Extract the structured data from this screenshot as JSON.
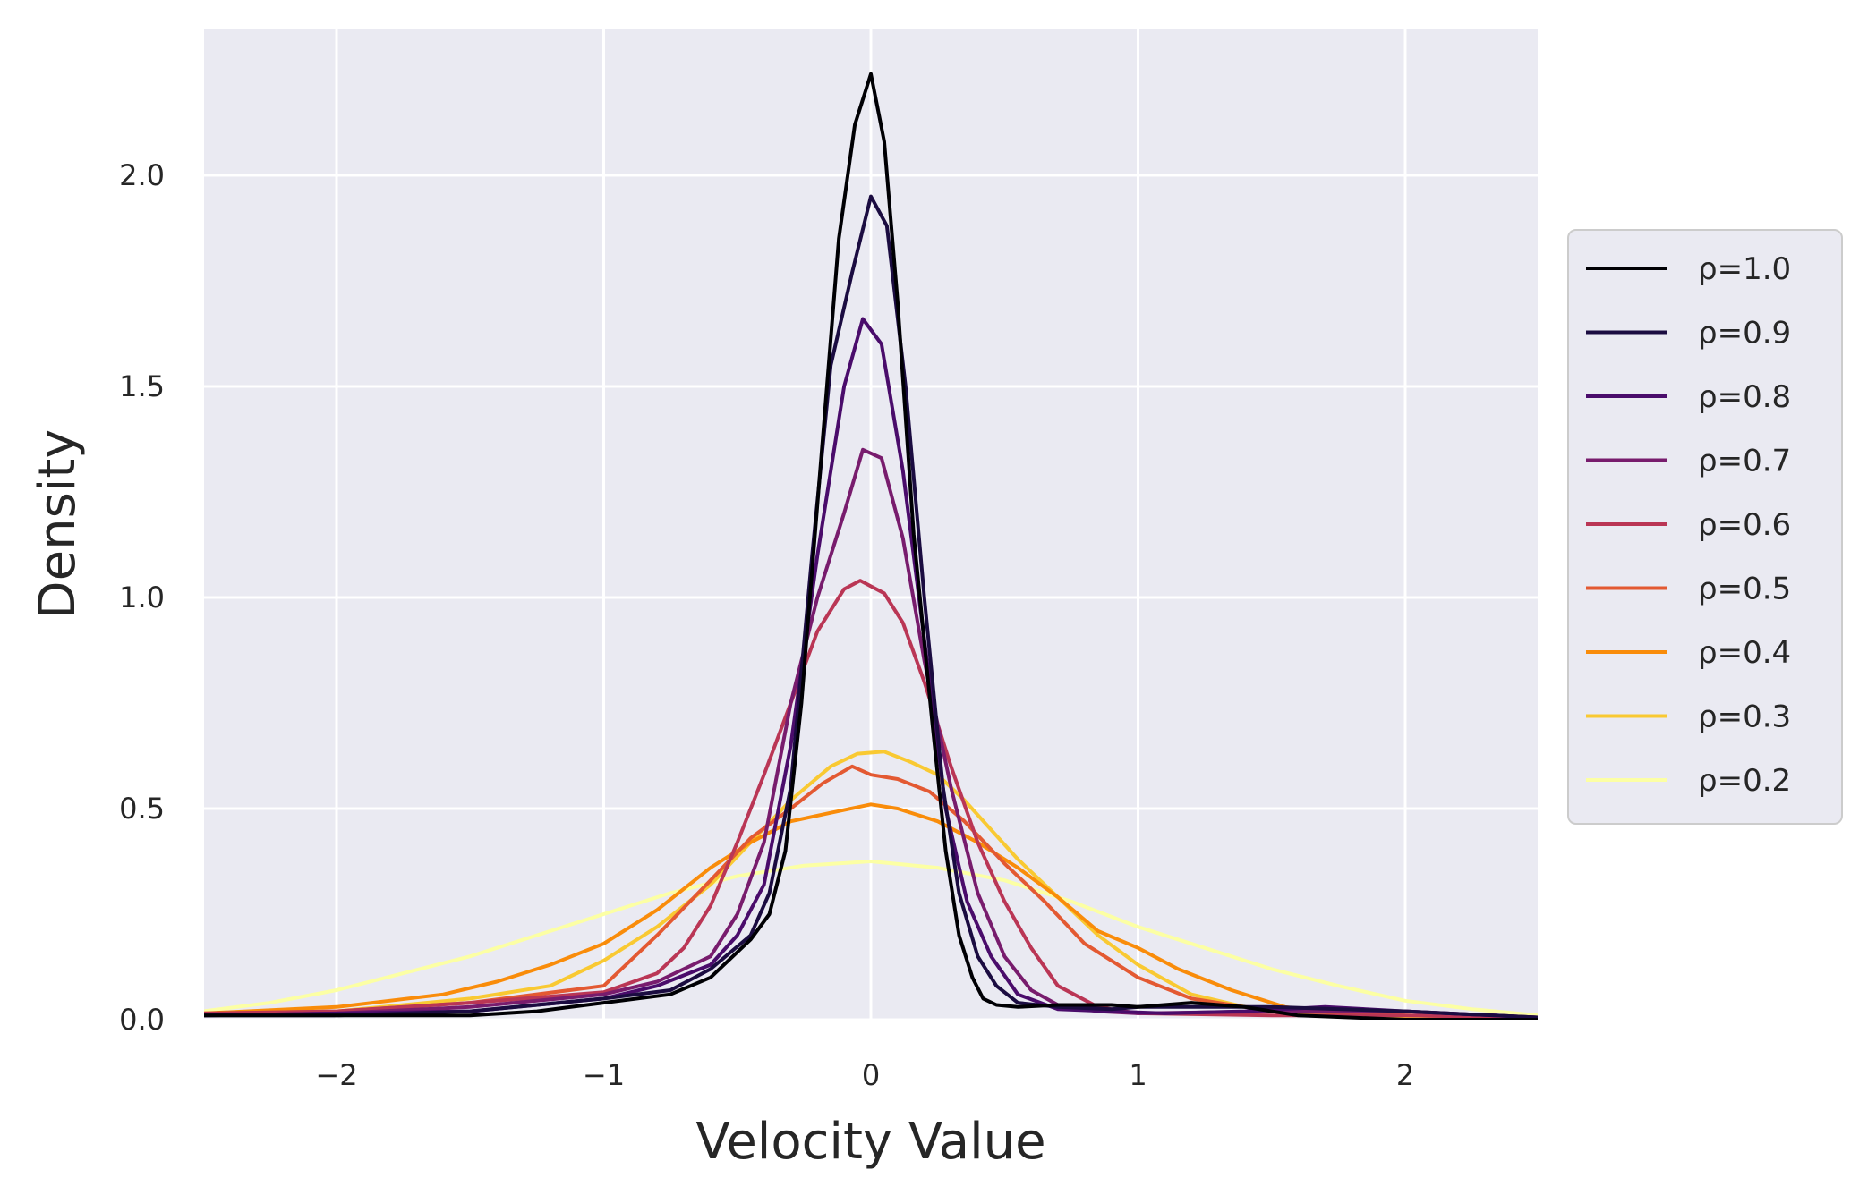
{
  "chart_data": {
    "type": "line",
    "title": "",
    "xlabel": "Velocity Value",
    "ylabel": "Density",
    "xlim": [
      -2.5,
      2.5
    ],
    "ylim": [
      0,
      2.35
    ],
    "xticks": [
      -2,
      -1,
      0,
      1,
      2
    ],
    "xtick_labels": [
      "−2",
      "−1",
      "0",
      "1",
      "2"
    ],
    "yticks": [
      0.0,
      0.5,
      1.0,
      1.5,
      2.0
    ],
    "ytick_labels": [
      "0.0",
      "0.5",
      "1.0",
      "1.5",
      "2.0"
    ],
    "grid": true,
    "legend_position": "right, outside plot",
    "series": [
      {
        "name": "ρ=1.0",
        "color": "#000004",
        "x": [
          -2.5,
          -2.0,
          -1.5,
          -1.25,
          -1.0,
          -0.75,
          -0.6,
          -0.45,
          -0.38,
          -0.32,
          -0.26,
          -0.19,
          -0.12,
          -0.06,
          0.0,
          0.05,
          0.1,
          0.16,
          0.23,
          0.28,
          0.33,
          0.38,
          0.42,
          0.47,
          0.55,
          0.7,
          0.9,
          1.0,
          1.2,
          1.4,
          1.6,
          1.8,
          2.0,
          2.2,
          2.5
        ],
        "y": [
          0.01,
          0.01,
          0.01,
          0.02,
          0.04,
          0.06,
          0.1,
          0.19,
          0.25,
          0.4,
          0.75,
          1.3,
          1.85,
          2.12,
          2.24,
          2.08,
          1.7,
          1.15,
          0.7,
          0.4,
          0.2,
          0.1,
          0.05,
          0.035,
          0.03,
          0.035,
          0.035,
          0.03,
          0.04,
          0.03,
          0.01,
          0.005,
          0.0,
          0.0,
          0.0
        ]
      },
      {
        "name": "ρ=0.9",
        "color": "#1b0c41",
        "x": [
          -2.5,
          -2.0,
          -1.5,
          -1.0,
          -0.75,
          -0.6,
          -0.45,
          -0.38,
          -0.3,
          -0.22,
          -0.15,
          -0.07,
          0.0,
          0.06,
          0.13,
          0.2,
          0.27,
          0.33,
          0.4,
          0.47,
          0.55,
          0.7,
          0.9,
          1.0,
          1.2,
          1.5,
          2.0,
          2.5
        ],
        "y": [
          0.01,
          0.01,
          0.02,
          0.05,
          0.07,
          0.12,
          0.2,
          0.3,
          0.55,
          1.1,
          1.55,
          1.77,
          1.95,
          1.88,
          1.5,
          1.0,
          0.55,
          0.3,
          0.15,
          0.08,
          0.04,
          0.03,
          0.025,
          0.03,
          0.03,
          0.03,
          0.02,
          0.005
        ]
      },
      {
        "name": "ρ=0.8",
        "color": "#4a0c6b",
        "x": [
          -2.5,
          -2.0,
          -1.5,
          -1.0,
          -0.8,
          -0.6,
          -0.5,
          -0.4,
          -0.3,
          -0.2,
          -0.1,
          -0.03,
          0.04,
          0.12,
          0.2,
          0.28,
          0.36,
          0.45,
          0.55,
          0.7,
          0.9,
          1.1,
          1.4,
          1.7,
          2.0,
          2.5
        ],
        "y": [
          0.01,
          0.015,
          0.02,
          0.05,
          0.08,
          0.13,
          0.2,
          0.32,
          0.65,
          1.1,
          1.5,
          1.66,
          1.6,
          1.3,
          0.9,
          0.5,
          0.28,
          0.15,
          0.06,
          0.025,
          0.02,
          0.015,
          0.02,
          0.03,
          0.02,
          0.005
        ]
      },
      {
        "name": "ρ=0.7",
        "color": "#781c6d",
        "x": [
          -2.5,
          -2.0,
          -1.5,
          -1.0,
          -0.8,
          -0.6,
          -0.5,
          -0.4,
          -0.3,
          -0.2,
          -0.1,
          -0.03,
          0.04,
          0.12,
          0.2,
          0.3,
          0.4,
          0.5,
          0.6,
          0.7,
          0.85,
          1.0,
          1.5,
          2.0,
          2.5
        ],
        "y": [
          0.01,
          0.015,
          0.03,
          0.06,
          0.09,
          0.15,
          0.25,
          0.42,
          0.75,
          1.0,
          1.2,
          1.35,
          1.33,
          1.14,
          0.85,
          0.55,
          0.3,
          0.15,
          0.07,
          0.035,
          0.02,
          0.015,
          0.02,
          0.02,
          0.005
        ]
      },
      {
        "name": "ρ=0.6",
        "color": "#ba3655",
        "x": [
          -2.5,
          -2.0,
          -1.5,
          -1.0,
          -0.8,
          -0.7,
          -0.6,
          -0.5,
          -0.4,
          -0.3,
          -0.2,
          -0.1,
          -0.04,
          0.05,
          0.12,
          0.2,
          0.3,
          0.4,
          0.5,
          0.6,
          0.7,
          0.85,
          1.0,
          1.5,
          2.0,
          2.5
        ],
        "y": [
          0.015,
          0.02,
          0.04,
          0.065,
          0.11,
          0.17,
          0.27,
          0.42,
          0.58,
          0.75,
          0.92,
          1.02,
          1.04,
          1.01,
          0.94,
          0.8,
          0.6,
          0.42,
          0.28,
          0.17,
          0.08,
          0.03,
          0.015,
          0.01,
          0.01,
          0.005
        ]
      },
      {
        "name": "ρ=0.5",
        "color": "#e35932",
        "x": [
          -2.5,
          -2.0,
          -1.5,
          -1.0,
          -0.8,
          -0.6,
          -0.45,
          -0.3,
          -0.18,
          -0.07,
          0.0,
          0.1,
          0.22,
          0.35,
          0.5,
          0.65,
          0.8,
          1.0,
          1.2,
          1.4,
          1.7,
          2.0,
          2.5
        ],
        "y": [
          0.015,
          0.02,
          0.04,
          0.08,
          0.2,
          0.33,
          0.43,
          0.5,
          0.56,
          0.6,
          0.58,
          0.57,
          0.54,
          0.47,
          0.37,
          0.28,
          0.18,
          0.1,
          0.05,
          0.03,
          0.02,
          0.01,
          0.005
        ]
      },
      {
        "name": "ρ=0.4",
        "color": "#f98c0a",
        "x": [
          -2.5,
          -2.0,
          -1.6,
          -1.4,
          -1.2,
          -1.0,
          -0.8,
          -0.6,
          -0.45,
          -0.3,
          -0.15,
          0.0,
          0.1,
          0.25,
          0.4,
          0.55,
          0.7,
          0.85,
          1.0,
          1.15,
          1.35,
          1.55,
          1.75,
          2.0,
          2.5
        ],
        "y": [
          0.015,
          0.03,
          0.06,
          0.09,
          0.13,
          0.18,
          0.26,
          0.36,
          0.42,
          0.47,
          0.49,
          0.51,
          0.5,
          0.47,
          0.42,
          0.36,
          0.29,
          0.21,
          0.17,
          0.12,
          0.07,
          0.03,
          0.015,
          0.01,
          0.005
        ]
      },
      {
        "name": "ρ=0.3",
        "color": "#f9c932",
        "x": [
          -2.5,
          -2.0,
          -1.5,
          -1.2,
          -1.0,
          -0.8,
          -0.6,
          -0.45,
          -0.3,
          -0.15,
          -0.05,
          0.05,
          0.15,
          0.25,
          0.35,
          0.45,
          0.55,
          0.7,
          0.85,
          1.0,
          1.2,
          1.4,
          1.6,
          2.0,
          2.5
        ],
        "y": [
          0.015,
          0.02,
          0.05,
          0.08,
          0.14,
          0.22,
          0.32,
          0.42,
          0.52,
          0.6,
          0.63,
          0.635,
          0.61,
          0.58,
          0.52,
          0.45,
          0.38,
          0.29,
          0.2,
          0.13,
          0.06,
          0.03,
          0.015,
          0.005,
          0.005
        ]
      },
      {
        "name": "ρ=0.2",
        "color": "#fcffa4",
        "x": [
          -2.5,
          -2.25,
          -2.0,
          -1.75,
          -1.5,
          -1.25,
          -1.0,
          -0.75,
          -0.5,
          -0.25,
          0.0,
          0.25,
          0.5,
          0.75,
          1.0,
          1.25,
          1.5,
          1.75,
          2.0,
          2.25,
          2.5
        ],
        "y": [
          0.02,
          0.04,
          0.07,
          0.11,
          0.15,
          0.2,
          0.25,
          0.3,
          0.34,
          0.365,
          0.375,
          0.36,
          0.33,
          0.28,
          0.22,
          0.17,
          0.12,
          0.08,
          0.045,
          0.025,
          0.01
        ]
      }
    ]
  }
}
